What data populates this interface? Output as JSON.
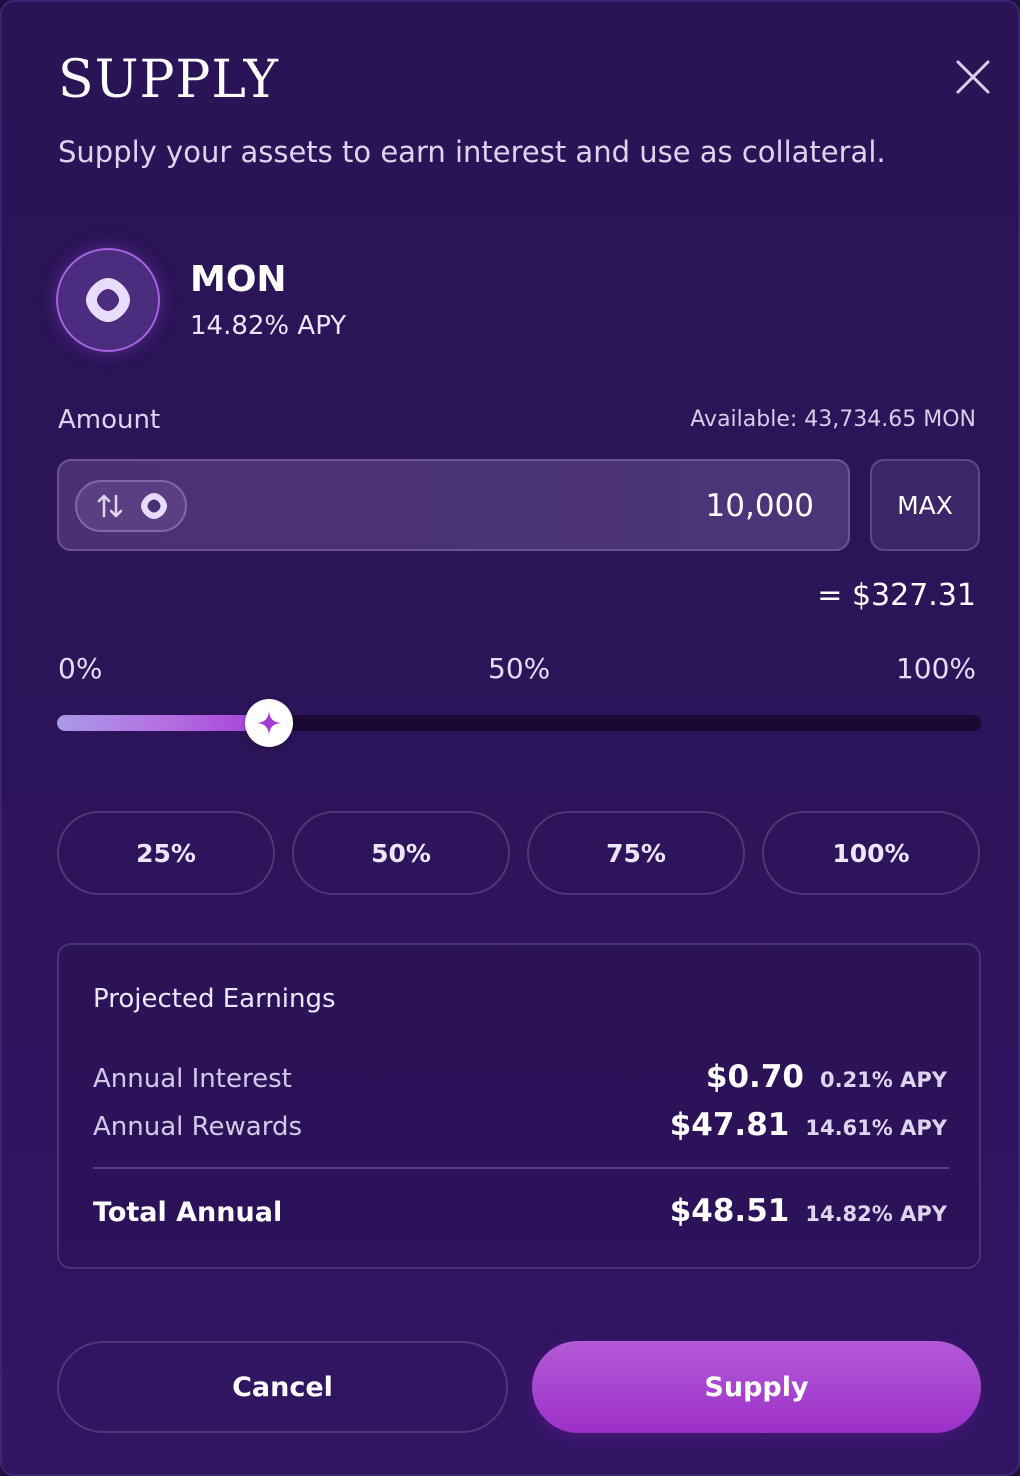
{
  "modal": {
    "title": "SUPPLY",
    "subtitle": "Supply your assets to earn interest and use as collateral.",
    "close_icon": "close-icon"
  },
  "asset": {
    "name": "MON",
    "apy": "14.82% APY",
    "icon": "mon-token-icon"
  },
  "amount": {
    "label": "Amount",
    "available": "Available: 43,734.65 MON",
    "value": "10,000",
    "usd_value": "= $327.31",
    "toggle_icons": [
      "swap-arrows-icon",
      "mon-token-icon"
    ],
    "max_label": "MAX"
  },
  "slider": {
    "ticks": [
      "0%",
      "50%",
      "100%"
    ],
    "value_percent": 22.9,
    "thumb_icon": "sparkle-icon"
  },
  "quick_buttons": [
    "25%",
    "50%",
    "75%",
    "100%"
  ],
  "earnings": {
    "title": "Projected Earnings",
    "interest": {
      "label": "Annual Interest",
      "amount": "$0.70",
      "apy": "0.21% APY"
    },
    "rewards": {
      "label": "Annual Rewards",
      "amount": "$47.81",
      "apy": "14.61% APY"
    },
    "total": {
      "label": "Total Annual",
      "amount": "$48.51",
      "apy": "14.82% APY"
    }
  },
  "actions": {
    "cancel_label": "Cancel",
    "supply_label": "Supply"
  },
  "colors": {
    "background": "#2a1456",
    "accent": "#a43dd6",
    "slider_track": "#1a0a33",
    "supply_button": "#9b30c8"
  }
}
